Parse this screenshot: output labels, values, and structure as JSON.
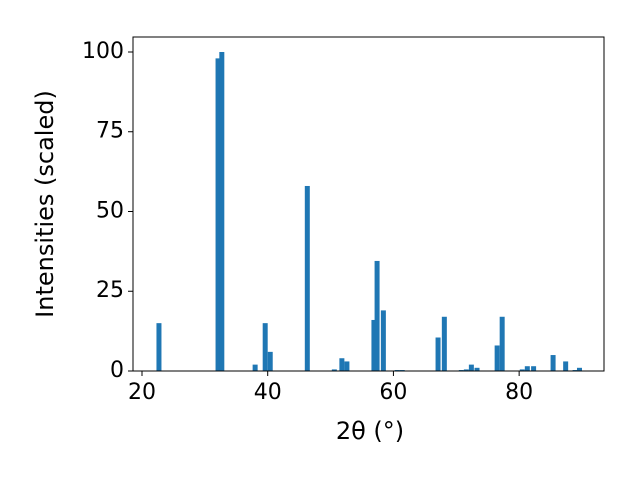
{
  "chart_data": {
    "type": "bar",
    "xlabel": "2θ (°)",
    "ylabel": "Intensities (scaled)",
    "color": "#1f77b4",
    "x": [
      22.7,
      32.1,
      32.7,
      38.0,
      39.6,
      40.4,
      46.3,
      50.6,
      51.8,
      52.6,
      56.9,
      57.4,
      58.4,
      60.6,
      61.4,
      67.1,
      68.1,
      70.8,
      71.6,
      72.4,
      73.3,
      76.5,
      77.3,
      80.5,
      81.3,
      82.3,
      85.4,
      87.4,
      88.9,
      89.6
    ],
    "values": [
      15,
      98,
      100,
      2,
      15,
      6,
      58,
      0.5,
      4,
      3,
      16,
      34.5,
      19,
      0.3,
      0.3,
      10.5,
      17,
      0.3,
      0.5,
      2,
      1,
      8,
      17,
      0.5,
      1.5,
      1.5,
      5,
      3,
      0.3,
      1
    ],
    "xlim": [
      18.57,
      93.5
    ],
    "ylim": [
      0,
      104.7
    ],
    "xticks": [
      20,
      40,
      60,
      80
    ],
    "yticks": [
      0,
      25,
      50,
      75,
      100
    ]
  }
}
